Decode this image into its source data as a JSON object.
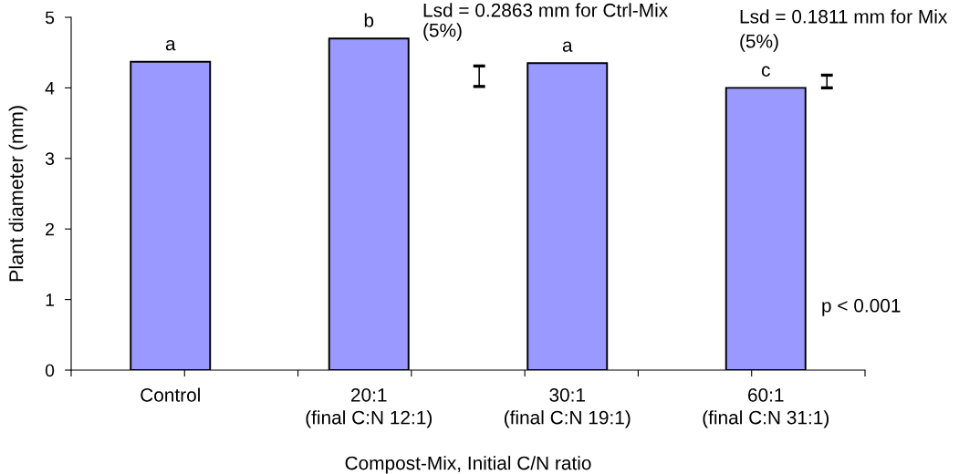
{
  "chart_data": {
    "type": "bar",
    "categories": [
      "Control",
      "20:1\n(final C:N 12:1)",
      "30:1\n(final C:N 19:1)",
      "60:1\n(final C:N 31:1)"
    ],
    "series": [
      {
        "color": "#9999ff",
        "values": [
          4.37,
          4.7,
          4.35,
          4.0
        ],
        "value_labels": [
          "a",
          "b",
          "a",
          "c"
        ]
      }
    ],
    "xlabel": "Compost-Mix, Initial C/N ratio",
    "ylabel": "Plant diameter (mm)",
    "ylim": [
      0,
      5
    ],
    "yticks": [
      0,
      1,
      2,
      3,
      4,
      5
    ],
    "annotations": [
      "Lsd = 0.2863 mm for Ctrl-Mix\n(5%)",
      "Lsd = 0.1811 mm for Mix\n(5%)",
      "p < 0.001"
    ]
  }
}
